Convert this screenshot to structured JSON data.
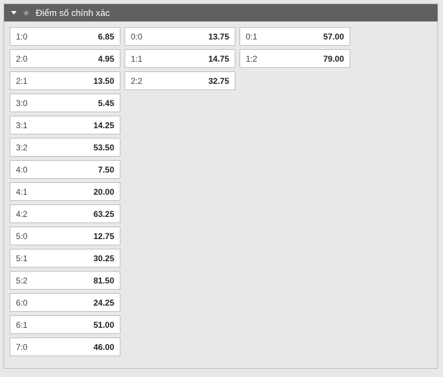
{
  "header": {
    "title": "Điểm số chính xác"
  },
  "columns": [
    [
      {
        "score": "1:0",
        "odd": "6.85"
      },
      {
        "score": "2:0",
        "odd": "4.95"
      },
      {
        "score": "2:1",
        "odd": "13.50"
      },
      {
        "score": "3:0",
        "odd": "5.45"
      },
      {
        "score": "3:1",
        "odd": "14.25"
      },
      {
        "score": "3:2",
        "odd": "53.50"
      },
      {
        "score": "4:0",
        "odd": "7.50"
      },
      {
        "score": "4:1",
        "odd": "20.00"
      },
      {
        "score": "4:2",
        "odd": "63.25"
      },
      {
        "score": "5:0",
        "odd": "12.75"
      },
      {
        "score": "5:1",
        "odd": "30.25"
      },
      {
        "score": "5:2",
        "odd": "81.50"
      },
      {
        "score": "6:0",
        "odd": "24.25"
      },
      {
        "score": "6:1",
        "odd": "51.00"
      },
      {
        "score": "7:0",
        "odd": "46.00"
      }
    ],
    [
      {
        "score": "0:0",
        "odd": "13.75"
      },
      {
        "score": "1:1",
        "odd": "14.75"
      },
      {
        "score": "2:2",
        "odd": "32.75"
      }
    ],
    [
      {
        "score": "0:1",
        "odd": "57.00"
      },
      {
        "score": "1:2",
        "odd": "79.00"
      }
    ]
  ]
}
